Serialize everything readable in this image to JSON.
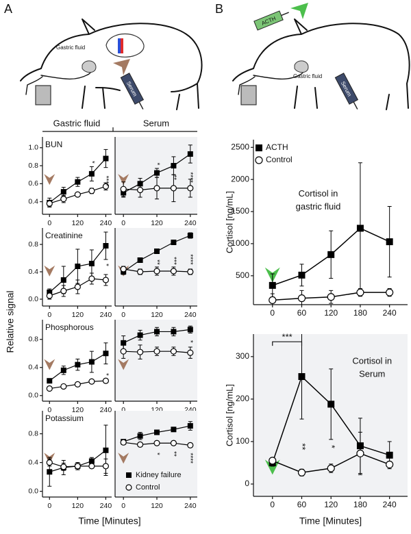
{
  "figure": {
    "panel_labels": [
      "A",
      "B"
    ],
    "column_headers": [
      "Gastric fluid",
      "Serum"
    ],
    "ylabel": "Relative signal",
    "xlabel": "Time [Minutes]"
  },
  "illustrations": {
    "a_gastric": "Gastric fluid",
    "a_serum": "Serum",
    "b_acth": "ACTH",
    "b_gastric": "Gastric fluid",
    "b_serum": "Serum"
  },
  "chart_data": [
    {
      "type": "line",
      "title": "BUN",
      "x": [
        0,
        60,
        120,
        180,
        240
      ],
      "xlim": [
        -30,
        265
      ],
      "xticks": [
        0,
        120,
        240
      ],
      "ylim": [
        0.26,
        1.12
      ],
      "yticks": [
        0.4,
        0.6,
        0.8,
        {
          "value": 1,
          "label": "1.0"
        }
      ],
      "arrow_color": "#a47a62",
      "series": [
        {
          "color": "#000000",
          "marker": "square",
          "values": [
            0.39,
            0.51,
            0.62,
            0.71,
            0.88
          ],
          "errors": [
            0.05,
            0.05,
            0.05,
            0.08,
            0.1
          ]
        },
        {
          "color": "#000000",
          "marker": "circle",
          "values": [
            0.38,
            0.43,
            0.48,
            0.52,
            0.57
          ],
          "errors": [
            0.03,
            0.04,
            0.02,
            0.03,
            0.04
          ]
        }
      ],
      "significance": [
        {
          "x": 180,
          "y": 0.84,
          "label": "*"
        },
        {
          "x": 240,
          "y": 0.63,
          "label": "****"
        }
      ]
    },
    {
      "type": "line",
      "x": [
        0,
        60,
        120,
        180,
        240
      ],
      "xlim": [
        -30,
        265
      ],
      "xticks": [
        0,
        120,
        240
      ],
      "ylim": [
        0.26,
        1.12
      ],
      "background": "#f1f2f4",
      "arrow_color": "#a47a62",
      "series": [
        {
          "color": "#000000",
          "marker": "square",
          "values": [
            0.5,
            0.6,
            0.72,
            0.8,
            0.93
          ],
          "errors": [
            0.05,
            0.06,
            0.05,
            0.1,
            0.1
          ]
        },
        {
          "color": "#000000",
          "marker": "circle",
          "values": [
            0.54,
            0.53,
            0.55,
            0.55,
            0.55
          ],
          "errors": [
            0.08,
            0.08,
            0.12,
            0.15,
            0.1
          ]
        }
      ],
      "significance": [
        {
          "x": 120,
          "y": 0.82,
          "label": "*"
        },
        {
          "x": 180,
          "y": 0.67,
          "label": "**"
        },
        {
          "x": 240,
          "y": 0.67,
          "label": "****"
        }
      ]
    },
    {
      "type": "line",
      "title": "Creatinine",
      "x": [
        0,
        60,
        120,
        180,
        240
      ],
      "xlim": [
        -30,
        265
      ],
      "xticks": [
        0,
        120,
        240
      ],
      "ylim": [
        -0.1,
        1.04
      ],
      "yticks": [
        {
          "value": 0,
          "label": "0.0"
        },
        0.4,
        0.8
      ],
      "arrow_color": "#a47a62",
      "series": [
        {
          "color": "#000000",
          "marker": "square",
          "values": [
            0.1,
            0.28,
            0.48,
            0.52,
            0.78
          ],
          "errors": [
            0.05,
            0.2,
            0.25,
            0.2,
            0.2
          ]
        },
        {
          "color": "#000000",
          "marker": "circle",
          "values": [
            0.05,
            0.12,
            0.18,
            0.3,
            0.28
          ],
          "errors": [
            0.05,
            0.08,
            0.1,
            0.08,
            0.08
          ]
        }
      ],
      "significance": [
        {
          "x": 240,
          "y": 0.5,
          "label": "*"
        }
      ]
    },
    {
      "type": "line",
      "x": [
        0,
        60,
        120,
        180,
        240
      ],
      "xlim": [
        -30,
        265
      ],
      "xticks": [
        0,
        120,
        240
      ],
      "ylim": [
        -0.1,
        1.04
      ],
      "background": "#f1f2f4",
      "arrow_color": "#a47a62",
      "series": [
        {
          "color": "#000000",
          "marker": "square",
          "values": [
            0.4,
            0.57,
            0.7,
            0.83,
            0.93
          ],
          "errors": [
            0.04,
            0.03,
            0.03,
            0.03,
            0.04
          ]
        },
        {
          "color": "#000000",
          "marker": "circle",
          "values": [
            0.44,
            0.4,
            0.41,
            0.41,
            0.4
          ],
          "errors": [
            0.04,
            0.04,
            0.06,
            0.06,
            0.04
          ]
        }
      ],
      "significance": [
        {
          "x": 120,
          "y": 0.54,
          "label": "**"
        },
        {
          "x": 180,
          "y": 0.56,
          "label": "***"
        },
        {
          "x": 240,
          "y": 0.58,
          "label": "****"
        }
      ]
    },
    {
      "type": "line",
      "title": "Phosphorous",
      "x": [
        0,
        60,
        120,
        180,
        240
      ],
      "xlim": [
        -30,
        265
      ],
      "xticks": [
        0,
        120,
        240
      ],
      "ylim": [
        -0.08,
        1.08
      ],
      "yticks": [
        {
          "value": 0,
          "label": "0.0"
        },
        0.4,
        0.8
      ],
      "arrow_color": "#a47a62",
      "series": [
        {
          "color": "#000000",
          "marker": "square",
          "values": [
            0.21,
            0.36,
            0.44,
            0.48,
            0.6
          ],
          "errors": [
            0.03,
            0.06,
            0.08,
            0.15,
            0.15
          ]
        },
        {
          "color": "#000000",
          "marker": "circle",
          "values": [
            0.1,
            0.13,
            0.16,
            0.2,
            0.21
          ],
          "errors": [
            0.03,
            0.03,
            0.02,
            0.02,
            0.03
          ]
        }
      ],
      "significance": [
        {
          "x": 240,
          "y": 0.3,
          "label": "*"
        }
      ]
    },
    {
      "type": "line",
      "x": [
        0,
        60,
        120,
        180,
        240
      ],
      "xlim": [
        -30,
        265
      ],
      "xticks": [
        0,
        120,
        240
      ],
      "ylim": [
        -0.08,
        1.08
      ],
      "background": "#f1f2f4",
      "arrow_color": "#a47a62",
      "series": [
        {
          "color": "#000000",
          "marker": "square",
          "values": [
            0.75,
            0.86,
            0.91,
            0.91,
            0.94
          ],
          "errors": [
            0.1,
            0.07,
            0.06,
            0.06,
            0.05
          ]
        },
        {
          "color": "#000000",
          "marker": "circle",
          "values": [
            0.63,
            0.62,
            0.63,
            0.63,
            0.61
          ],
          "errors": [
            0.1,
            0.1,
            0.06,
            0.06,
            0.08
          ]
        }
      ],
      "significance": [
        {
          "x": 240,
          "y": 0.77,
          "label": "*"
        }
      ]
    },
    {
      "type": "line",
      "title": "Potassium",
      "x": [
        0,
        60,
        120,
        180,
        240
      ],
      "xlim": [
        -30,
        265
      ],
      "xticks": [
        0,
        120,
        240
      ],
      "ylim": [
        -0.08,
        1.12
      ],
      "yticks": [
        {
          "value": 0,
          "label": "0.0"
        },
        0.4,
        0.8
      ],
      "arrow_color": "#a47a62",
      "series": [
        {
          "color": "#000000",
          "marker": "square",
          "values": [
            0.27,
            0.33,
            0.35,
            0.42,
            0.57
          ],
          "errors": [
            0.2,
            0.1,
            0.05,
            0.05,
            0.35
          ]
        },
        {
          "color": "#000000",
          "marker": "circle",
          "values": [
            0.4,
            0.34,
            0.35,
            0.35,
            0.35
          ],
          "errors": [
            0.05,
            0.05,
            0.05,
            0.03,
            0.1
          ]
        }
      ]
    },
    {
      "type": "line",
      "x": [
        0,
        60,
        120,
        180,
        240
      ],
      "xlim": [
        -30,
        265
      ],
      "xticks": [
        0,
        120,
        240
      ],
      "ylim": [
        -0.08,
        1.12
      ],
      "background": "#f1f2f4",
      "arrow_color": "#a47a62",
      "legend": "lower right",
      "series": [
        {
          "name": "Kidney failure",
          "color": "#000000",
          "marker": "square",
          "values": [
            0.69,
            0.77,
            0.82,
            0.86,
            0.91
          ],
          "errors": [
            0.03,
            0.05,
            0.03,
            0.03,
            0.06
          ]
        },
        {
          "name": "Control",
          "color": "#000000",
          "marker": "circle",
          "values": [
            0.68,
            0.65,
            0.67,
            0.67,
            0.64
          ],
          "errors": [
            0.03,
            0.03,
            0.03,
            0.03,
            0.03
          ]
        }
      ],
      "significance": [
        {
          "x": 120,
          "y": 0.52,
          "label": "*"
        },
        {
          "x": 180,
          "y": 0.52,
          "label": "**"
        },
        {
          "x": 240,
          "y": 0.46,
          "label": "****"
        }
      ]
    },
    {
      "type": "line",
      "ylabel": "Cortisol [ng/mL]",
      "x": [
        0,
        60,
        120,
        180,
        240
      ],
      "xlim": [
        -39,
        277
      ],
      "xticks": [
        0,
        60,
        120,
        180,
        240
      ],
      "ylim": [
        50,
        2620
      ],
      "yticks": [
        500,
        1000,
        1500,
        2000,
        2500
      ],
      "arrow_color": "#4cbf4c",
      "legend": "upper left",
      "annotation": [
        "Cortisol in",
        "gastric fluid"
      ],
      "series": [
        {
          "name": "ACTH",
          "color": "#000000",
          "marker": "square",
          "values": [
            350,
            510,
            830,
            1240,
            1030
          ],
          "errors": [
            180,
            170,
            370,
            1020,
            550
          ]
        },
        {
          "name": "Control",
          "color": "#000000",
          "marker": "circle",
          "values": [
            120,
            150,
            170,
            240,
            240
          ],
          "errors": [
            100,
            120,
            100,
            60,
            60
          ]
        }
      ]
    },
    {
      "type": "line",
      "ylabel": "Cortisol [ng/mL]",
      "xlabel": "Time [Minutes]",
      "x": [
        0,
        60,
        120,
        180,
        240
      ],
      "xlim": [
        -39,
        277
      ],
      "xticks": [
        0,
        60,
        120,
        180,
        240
      ],
      "ylim": [
        -29,
        353
      ],
      "yticks": [
        0,
        100,
        200,
        300
      ],
      "background": "#f1f2f4",
      "arrow_color": "#4cbf4c",
      "annotation": [
        "Cortisol in",
        "Serum"
      ],
      "series": [
        {
          "color": "#000000",
          "marker": "square",
          "values": [
            50,
            253,
            188,
            90,
            68
          ],
          "errors": [
            8,
            100,
            83,
            65,
            32
          ]
        },
        {
          "color": "#000000",
          "marker": "circle",
          "values": [
            55,
            27,
            37,
            72,
            46
          ],
          "errors": [
            5,
            8,
            10,
            50,
            5
          ]
        }
      ],
      "significance": [
        {
          "x": 60,
          "y": 88,
          "label": "**"
        },
        {
          "x": 120,
          "y": 88,
          "label": "*"
        }
      ],
      "bracket": {
        "x": [
          0,
          60
        ],
        "y": 335,
        "label": "***"
      }
    }
  ]
}
